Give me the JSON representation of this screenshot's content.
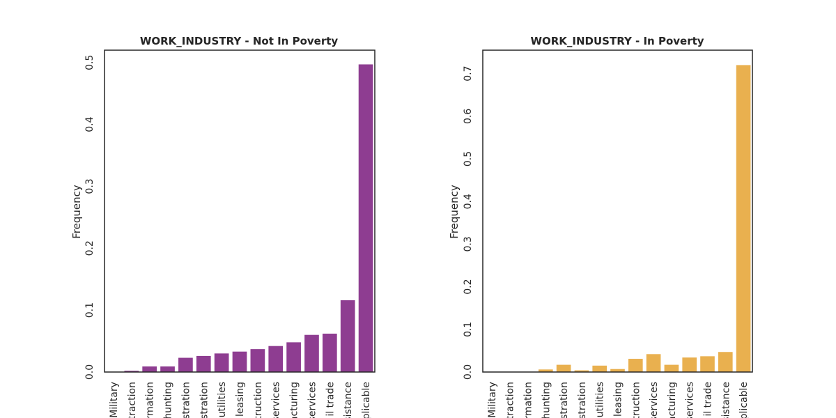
{
  "chart_data": [
    {
      "type": "bar",
      "title": "WORK_INDUSTRY - Not In Poverty",
      "xlabel": "",
      "ylabel": "Frequency",
      "color": "#8e3d91",
      "ylim": [
        0,
        0.52
      ],
      "yticks": [
        "0.0",
        "0.1",
        "0.2",
        "0.3",
        "0.4",
        "0.5"
      ],
      "categories": [
        "Military",
        "traction",
        "rmation",
        "hunting",
        "istration",
        "istration",
        "utilities",
        "leasing",
        "truction",
        "services",
        "acturing",
        "services",
        "il trade",
        "sistance",
        "plicable"
      ],
      "values": [
        0.0,
        0.002,
        0.009,
        0.009,
        0.023,
        0.026,
        0.03,
        0.033,
        0.037,
        0.042,
        0.048,
        0.06,
        0.062,
        0.116,
        0.497
      ]
    },
    {
      "type": "bar",
      "title": "WORK_INDUSTRY - In Poverty",
      "xlabel": "",
      "ylabel": "Frequency",
      "color": "#e9b04f",
      "ylim": [
        0,
        0.755
      ],
      "yticks": [
        "0.0",
        "0.1",
        "0.2",
        "0.3",
        "0.4",
        "0.5",
        "0.6",
        "0.7"
      ],
      "categories": [
        "Military",
        "traction",
        "rmation",
        "hunting",
        "istration",
        "istration",
        "utilities",
        "leasing",
        "truction",
        "services",
        "acturing",
        "services",
        "il trade",
        "sistance",
        "plicable"
      ],
      "values": [
        0.0,
        0.0,
        0.0,
        0.006,
        0.017,
        0.004,
        0.015,
        0.007,
        0.031,
        0.042,
        0.017,
        0.034,
        0.037,
        0.047,
        0.72
      ]
    }
  ]
}
